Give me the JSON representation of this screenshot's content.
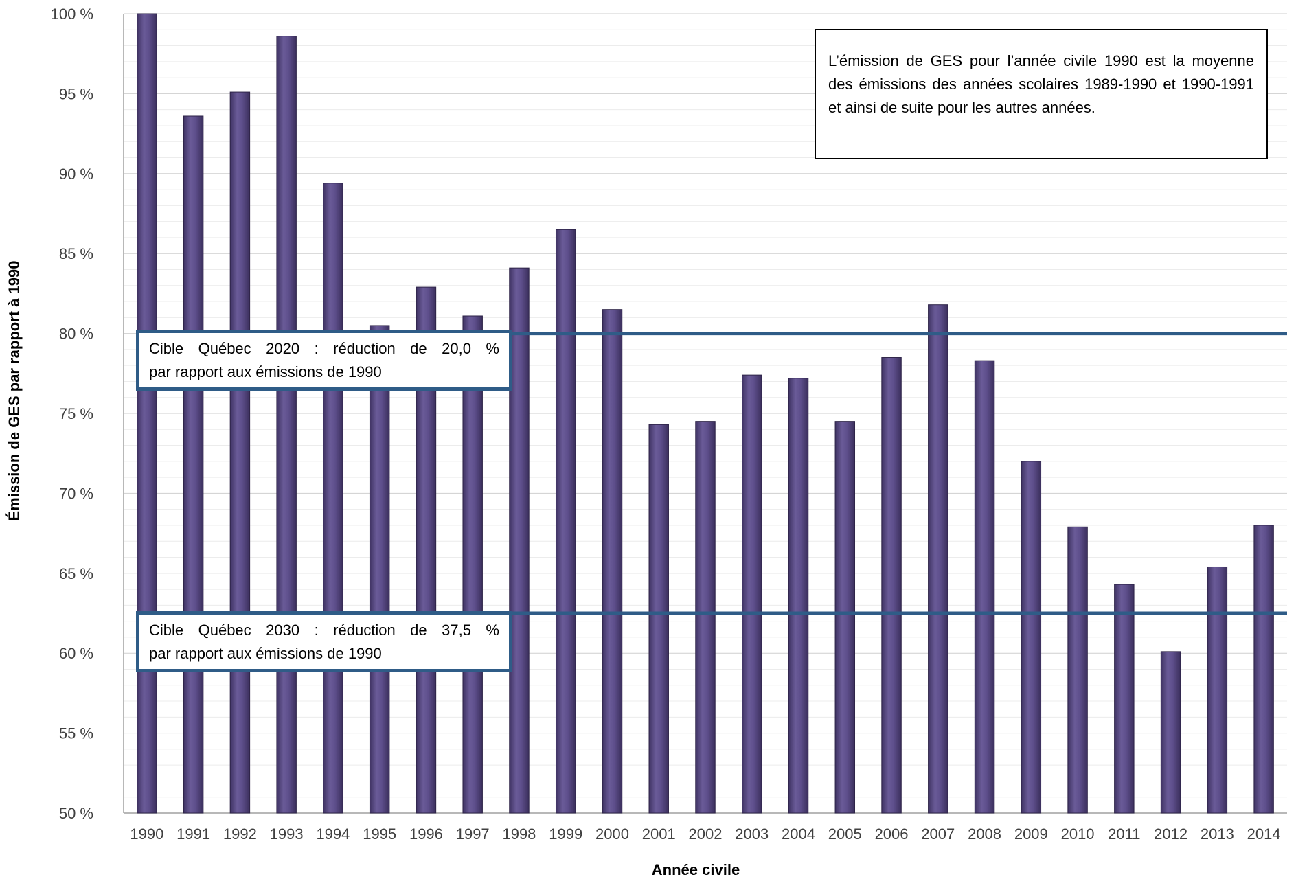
{
  "chart_data": {
    "type": "bar",
    "xlabel": "Année civile",
    "ylabel": "Émission de GES par rapport à 1990",
    "ylim": [
      50,
      100
    ],
    "y_tick_step": 5,
    "y_tick_labels": [
      "50 %",
      "55 %",
      "60 %",
      "65 %",
      "70 %",
      "75 %",
      "80 %",
      "85 %",
      "90 %",
      "95 %",
      "100 %"
    ],
    "categories": [
      "1990",
      "1991",
      "1992",
      "1993",
      "1994",
      "1995",
      "1996",
      "1997",
      "1998",
      "1999",
      "2000",
      "2001",
      "2002",
      "2003",
      "2004",
      "2005",
      "2006",
      "2007",
      "2008",
      "2009",
      "2010",
      "2011",
      "2012",
      "2013",
      "2014"
    ],
    "values": [
      100,
      93.6,
      95.1,
      98.6,
      89.4,
      80.5,
      82.9,
      81.1,
      84.1,
      86.5,
      81.5,
      74.3,
      74.5,
      77.4,
      77.2,
      74.5,
      78.5,
      81.8,
      78.3,
      72.0,
      67.9,
      64.3,
      60.1,
      65.4,
      68.0
    ],
    "bar_color": "#5e4f8c",
    "target_line_color": "#2f5c87",
    "grid": true,
    "targets": [
      {
        "value": 80.0,
        "label_line1": "Cible Québec 2020 : réduction de 20,0 %",
        "label_line2": "par rapport aux émissions de 1990"
      },
      {
        "value": 62.5,
        "label_line1": "Cible Québec 2030 : réduction de 37,5 %",
        "label_line2": "par rapport aux émissions de 1990"
      }
    ],
    "note": "L’émission de GES pour l’année civile 1990 est la moyenne des émissions des années scolaires 1989-1990 et 1990-1991 et ainsi de suite pour les autres années."
  }
}
